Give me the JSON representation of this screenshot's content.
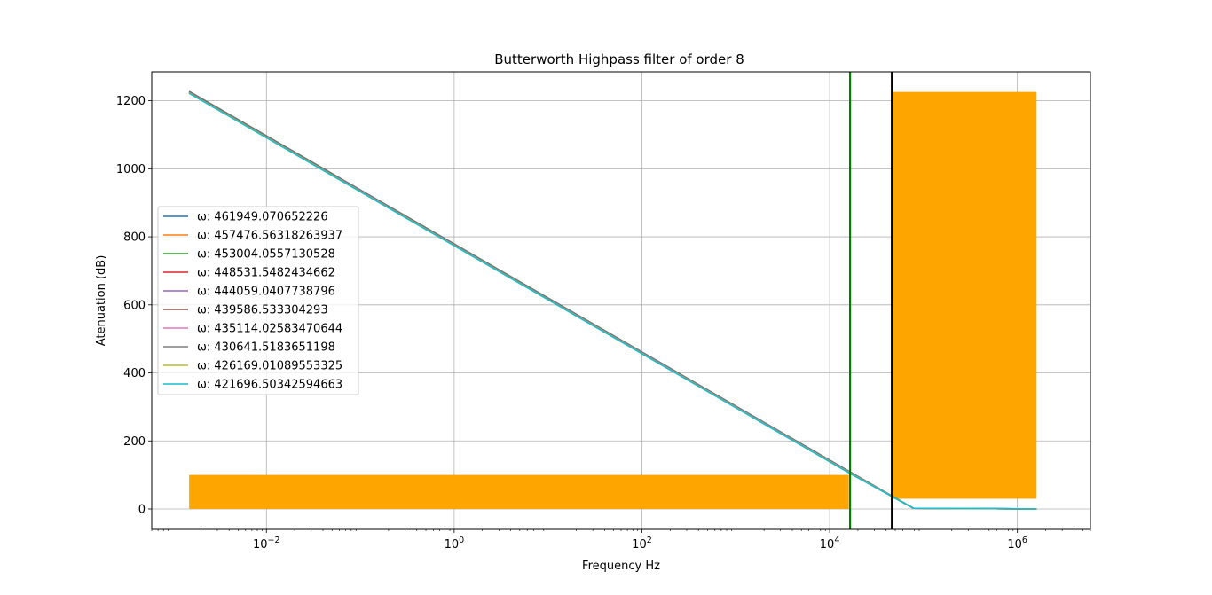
{
  "chart_data": {
    "type": "line",
    "title": "Butterworth Highpass filter of order 8",
    "xlabel": "Frequency Hz",
    "ylabel": "Atenuation (dB)",
    "xscale": "log",
    "xlim": [
      0.0006,
      6000000
    ],
    "ylim": [
      -60,
      1285
    ],
    "grid": true,
    "legend_location": "center-left",
    "x_ticks": [
      {
        "value": 0.01,
        "base": "10",
        "exp": "−2"
      },
      {
        "value": 1,
        "base": "10",
        "exp": "0"
      },
      {
        "value": 100,
        "base": "10",
        "exp": "2"
      },
      {
        "value": 10000,
        "base": "10",
        "exp": "4"
      },
      {
        "value": 1000000,
        "base": "10",
        "exp": "6"
      }
    ],
    "y_ticks": [
      "0",
      "200",
      "400",
      "600",
      "800",
      "1000",
      "1200"
    ],
    "series": [
      {
        "name": "ω: 461949.070652226",
        "color": "#1f77b4",
        "omega": 461949.070652226,
        "x": [
          0.0015,
          17000,
          78000,
          1600000
        ],
        "y": [
          1228,
          107,
          2,
          0
        ]
      },
      {
        "name": "ω: 457476.56318263937",
        "color": "#ff7f0e",
        "omega": 457476.56318263937,
        "x": [
          0.0015,
          17000,
          78000,
          1600000
        ],
        "y": [
          1227,
          106,
          2,
          0
        ]
      },
      {
        "name": "ω: 453004.0557130528",
        "color": "#2ca02c",
        "omega": 453004.0557130528,
        "x": [
          0.0015,
          17000,
          78000,
          1600000
        ],
        "y": [
          1227,
          106,
          2,
          0
        ]
      },
      {
        "name": "ω: 448531.5482434662",
        "color": "#d62728",
        "omega": 448531.5482434662,
        "x": [
          0.0015,
          17000,
          78000,
          1600000
        ],
        "y": [
          1226,
          105,
          2,
          0
        ]
      },
      {
        "name": "ω: 444059.0407738796",
        "color": "#9467bd",
        "omega": 444059.0407738796,
        "x": [
          0.0015,
          17000,
          78000,
          1600000
        ],
        "y": [
          1226,
          105,
          2,
          0
        ]
      },
      {
        "name": "ω: 439586.533304293",
        "color": "#8c564b",
        "omega": 439586.533304293,
        "x": [
          0.0015,
          17000,
          78000,
          1600000
        ],
        "y": [
          1225,
          104,
          2,
          0
        ]
      },
      {
        "name": "ω: 435114.02583470644",
        "color": "#e377c2",
        "omega": 435114.02583470644,
        "x": [
          0.0015,
          17000,
          78000,
          1600000
        ],
        "y": [
          1224,
          104,
          2,
          0
        ]
      },
      {
        "name": "ω: 430641.5183651198",
        "color": "#7f7f7f",
        "omega": 430641.5183651198,
        "x": [
          0.0015,
          17000,
          78000,
          1600000
        ],
        "y": [
          1224,
          103,
          2,
          0
        ]
      },
      {
        "name": "ω: 426169.01089553325",
        "color": "#bcbd22",
        "omega": 426169.01089553325,
        "x": [
          0.0015,
          17000,
          78000,
          1600000
        ],
        "y": [
          1223,
          103,
          2,
          0
        ]
      },
      {
        "name": "ω: 421696.50342594663",
        "color": "#17becf",
        "omega": 421696.50342594663,
        "x": [
          0.0015,
          17000,
          78000,
          1600000
        ],
        "y": [
          1222,
          102,
          2,
          0
        ]
      }
    ],
    "regions": [
      {
        "color": "#ffa500",
        "x": [
          0.0015,
          16000
        ],
        "y": [
          0,
          100
        ]
      },
      {
        "color": "#ffa500",
        "x": [
          47000,
          1600000
        ],
        "y": [
          30,
          1226
        ]
      }
    ],
    "vlines": [
      {
        "x": 16500,
        "color": "#008000"
      },
      {
        "x": 46000,
        "color": "#000000"
      }
    ]
  }
}
